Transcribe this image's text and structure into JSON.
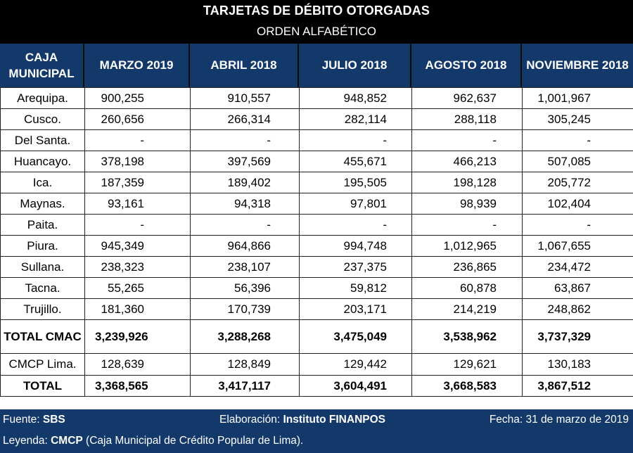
{
  "title": "TARJETAS DE DÉBITO OTORGADAS",
  "subtitle": "ORDEN ALFABÉTICO",
  "header": {
    "caja_line1": "CAJA",
    "caja_line2": "MUNICIPAL",
    "columns": [
      "MARZO 2019",
      "ABRIL 2018",
      "JULIO 2018",
      "AGOSTO 2018",
      "NOVIEMBRE 2018"
    ]
  },
  "rows": [
    {
      "name": "Arequipa.",
      "values": [
        "900,255",
        "910,557",
        "948,852",
        "962,637",
        "1,001,967"
      ]
    },
    {
      "name": "Cusco.",
      "values": [
        "260,656",
        "266,314",
        "282,114",
        "288,118",
        "305,245"
      ]
    },
    {
      "name": "Del Santa.",
      "values": [
        "-",
        "-",
        "-",
        "-",
        "-"
      ]
    },
    {
      "name": "Huancayo.",
      "values": [
        "378,198",
        "397,569",
        "455,671",
        "466,213",
        "507,085"
      ]
    },
    {
      "name": "Ica.",
      "values": [
        "187,359",
        "189,402",
        "195,505",
        "198,128",
        "205,772"
      ]
    },
    {
      "name": "Maynas.",
      "values": [
        "93,161",
        "94,318",
        "97,801",
        "98,939",
        "102,404"
      ]
    },
    {
      "name": "Paita.",
      "values": [
        "-",
        "-",
        "-",
        "-",
        "-"
      ]
    },
    {
      "name": "Piura.",
      "values": [
        "945,349",
        "964,866",
        "994,748",
        "1,012,965",
        "1,067,655"
      ]
    },
    {
      "name": "Sullana.",
      "values": [
        "238,323",
        "238,107",
        "237,375",
        "236,865",
        "234,472"
      ]
    },
    {
      "name": "Tacna.",
      "values": [
        "55,265",
        "56,396",
        "59,812",
        "60,878",
        "63,867"
      ]
    },
    {
      "name": "Trujillo.",
      "values": [
        "181,360",
        "170,739",
        "203,171",
        "214,219",
        "248,862"
      ]
    },
    {
      "name": "TOTAL CMAC",
      "values": [
        "3,239,926",
        "3,288,268",
        "3,475,049",
        "3,538,962",
        "3,737,329"
      ],
      "total": true
    },
    {
      "name": "CMCP Lima.",
      "values": [
        "128,639",
        "128,849",
        "129,442",
        "129,621",
        "130,183"
      ]
    },
    {
      "name": "TOTAL",
      "values": [
        "3,368,565",
        "3,417,117",
        "3,604,491",
        "3,668,583",
        "3,867,512"
      ],
      "total": true
    }
  ],
  "footer": {
    "fuente_label": "Fuente:",
    "fuente_value": "SBS",
    "elaboracion_label": "Elaboración:",
    "elaboracion_value": "Instituto FINANPOS",
    "fecha": "Fecha: 31 de marzo de 2019",
    "leyenda_label": "Leyenda:",
    "leyenda_value": "CMCP",
    "leyenda_rest": "(Caja Municipal de Crédito Popular de Lima)."
  }
}
